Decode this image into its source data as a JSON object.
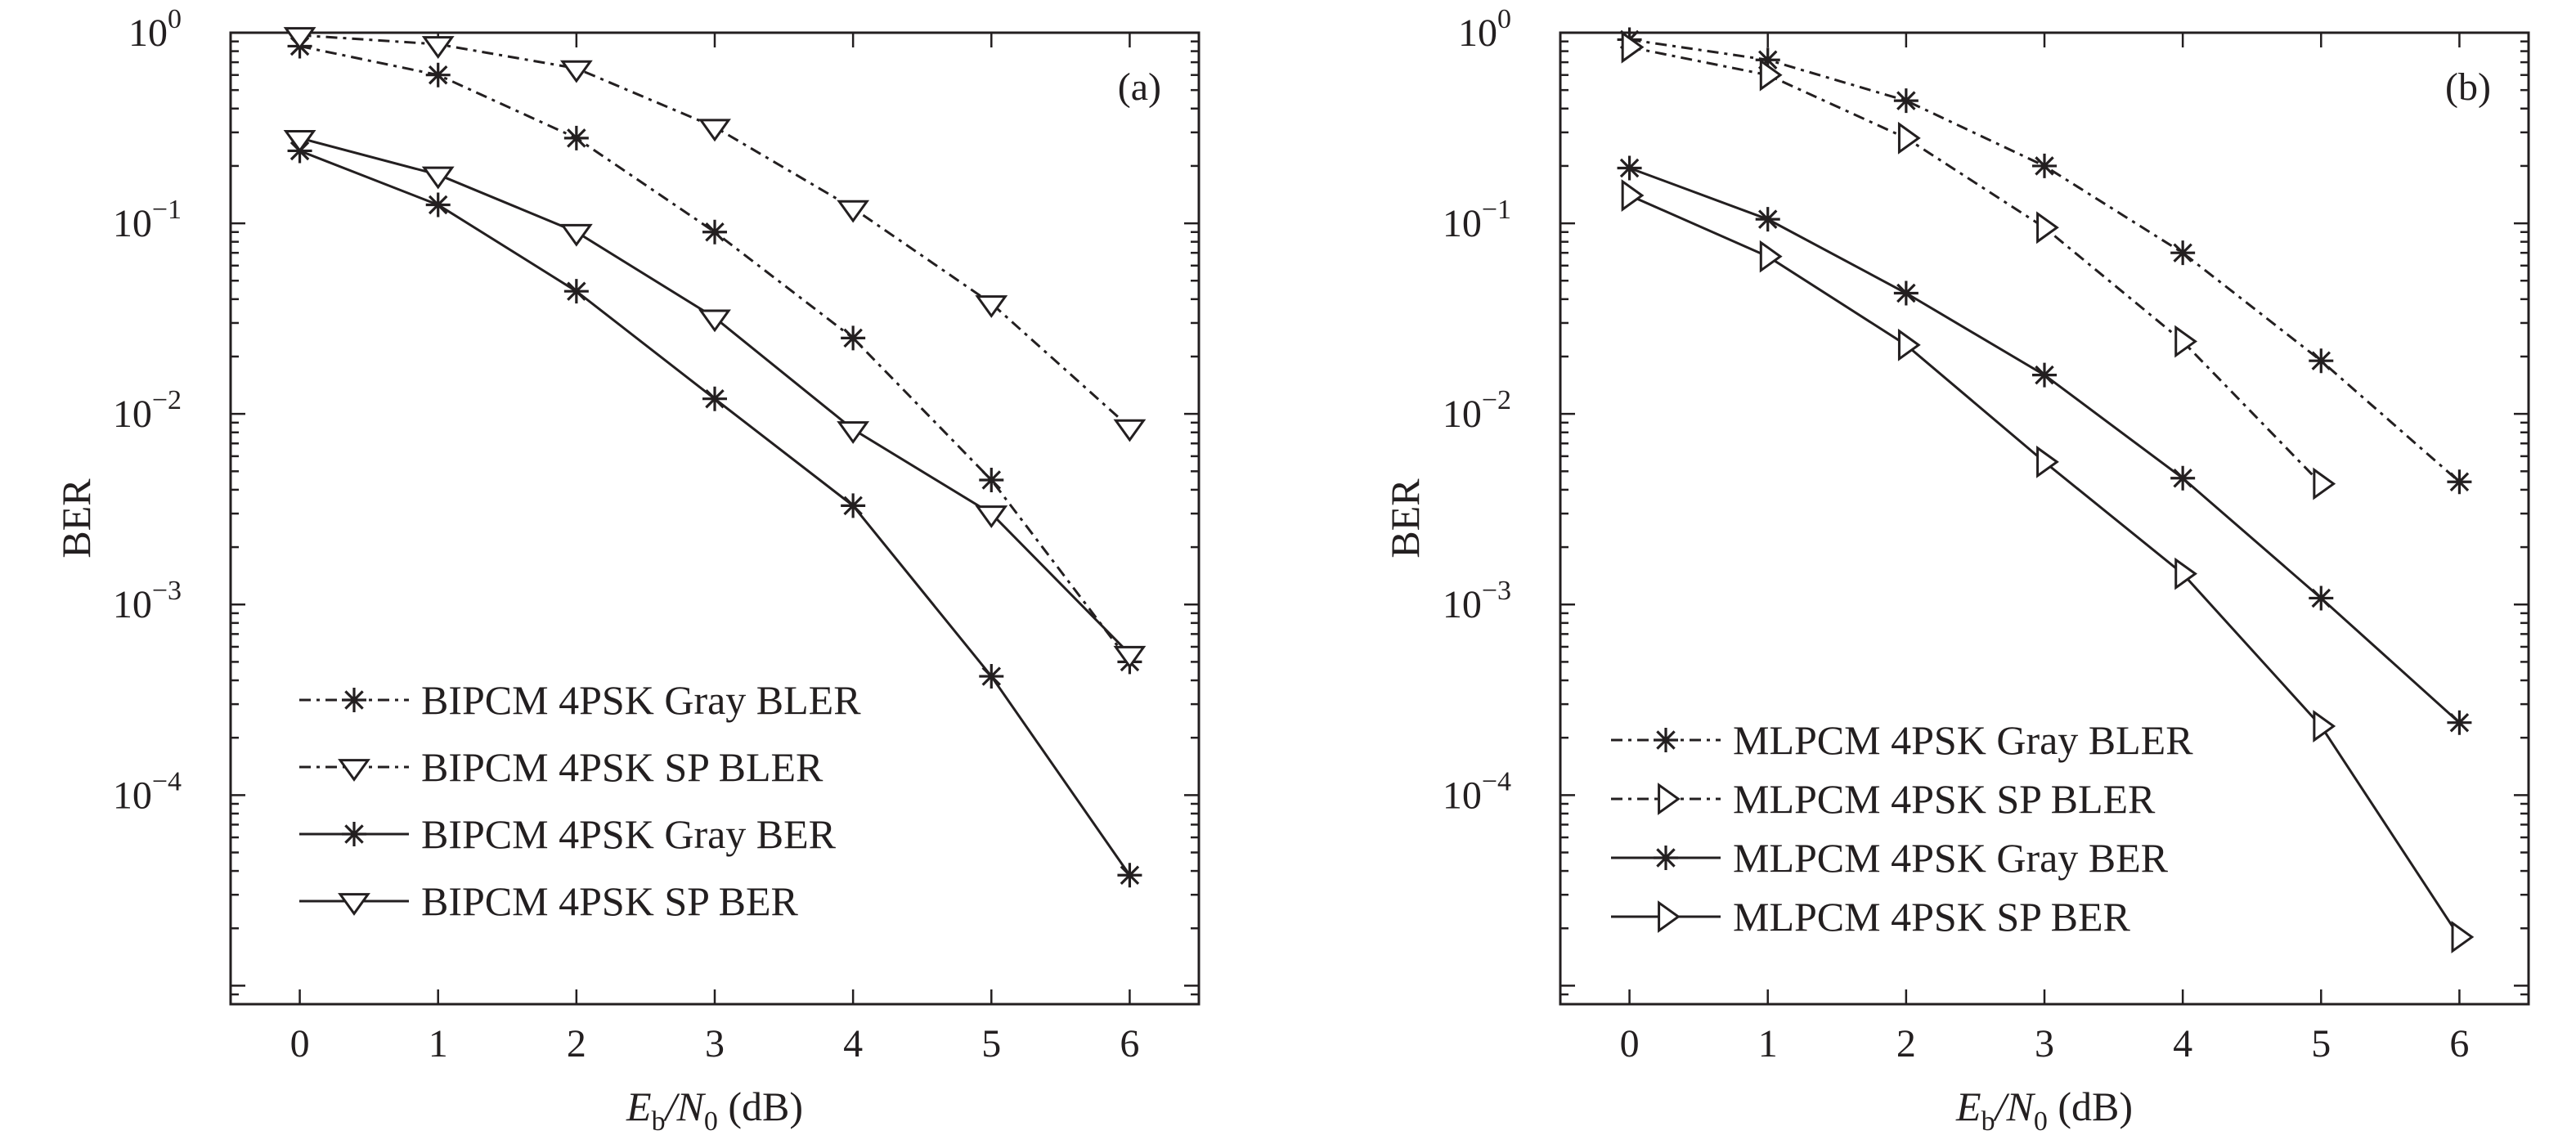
{
  "chart_data": [
    {
      "type": "line",
      "panel_label": "(a)",
      "y_scale": "log",
      "ylim": [
        8e-06,
        1
      ],
      "xlim": [
        -0.5,
        6.5
      ],
      "grid": false,
      "legend_position": "bottom-left",
      "ylabel": "BER",
      "xlabel": {
        "main": "E",
        "sub1": "b",
        "slash": "/N",
        "sub2": "0",
        "unit": " (dB)"
      },
      "x_ticks": [
        "0",
        "1",
        "2",
        "3",
        "4",
        "5",
        "6"
      ],
      "y_ticks": [
        {
          "value": 1,
          "base": "10",
          "exp": "0"
        },
        {
          "value": 0.1,
          "base": "10",
          "exp": "−1"
        },
        {
          "value": 0.01,
          "base": "10",
          "exp": "−2"
        },
        {
          "value": 0.001,
          "base": "10",
          "exp": "−3"
        },
        {
          "value": 0.0001,
          "base": "10",
          "exp": "−4"
        }
      ],
      "series": [
        {
          "name": "BIPCM 4PSK Gray BLER",
          "marker": "star",
          "line": "dashed",
          "x": [
            0,
            1,
            2,
            3,
            4,
            5,
            6
          ],
          "y": [
            0.85,
            0.6,
            0.28,
            0.09,
            0.025,
            0.0045,
            0.0005
          ]
        },
        {
          "name": "BIPCM 4PSK SP BLER",
          "marker": "triangle-down",
          "line": "dashed",
          "x": [
            0,
            1,
            2,
            3,
            4,
            5,
            6
          ],
          "y": [
            0.97,
            0.87,
            0.65,
            0.32,
            0.12,
            0.038,
            0.0085
          ]
        },
        {
          "name": "BIPCM 4PSK Gray BER",
          "marker": "star",
          "line": "solid",
          "x": [
            0,
            1,
            2,
            3,
            4,
            5,
            6
          ],
          "y": [
            0.24,
            0.125,
            0.044,
            0.012,
            0.0033,
            0.00042,
            3.8e-05
          ]
        },
        {
          "name": "BIPCM 4PSK SP BER",
          "marker": "triangle-down",
          "line": "solid",
          "x": [
            0,
            1,
            2,
            3,
            4,
            5,
            6
          ],
          "y": [
            0.28,
            0.18,
            0.09,
            0.032,
            0.0083,
            0.003,
            0.00055
          ]
        }
      ]
    },
    {
      "type": "line",
      "panel_label": "(b)",
      "y_scale": "log",
      "ylim": [
        8e-06,
        1
      ],
      "xlim": [
        -0.5,
        6.5
      ],
      "grid": false,
      "legend_position": "bottom-left",
      "ylabel": "BER",
      "xlabel": {
        "main": "E",
        "sub1": "b",
        "slash": "/N",
        "sub2": "0",
        "unit": " (dB)"
      },
      "x_ticks": [
        "0",
        "1",
        "2",
        "3",
        "4",
        "5",
        "6"
      ],
      "y_ticks": [
        {
          "value": 1,
          "base": "10",
          "exp": "0"
        },
        {
          "value": 0.1,
          "base": "10",
          "exp": "−1"
        },
        {
          "value": 0.01,
          "base": "10",
          "exp": "−2"
        },
        {
          "value": 0.001,
          "base": "10",
          "exp": "−3"
        },
        {
          "value": 0.0001,
          "base": "10",
          "exp": "−4"
        }
      ],
      "series": [
        {
          "name": "MLPCM 4PSK Gray BLER",
          "marker": "star",
          "line": "dashed",
          "x": [
            0,
            1,
            2,
            3,
            4,
            5,
            6
          ],
          "y": [
            0.92,
            0.72,
            0.44,
            0.2,
            0.07,
            0.019,
            0.0044
          ]
        },
        {
          "name": "MLPCM 4PSK SP BLER",
          "marker": "triangle-right",
          "line": "dashed",
          "x": [
            0,
            1,
            2,
            3,
            4,
            5
          ],
          "y": [
            0.84,
            0.6,
            0.28,
            0.095,
            0.024,
            0.0043
          ]
        },
        {
          "name": "MLPCM 4PSK Gray BER",
          "marker": "star",
          "line": "solid",
          "x": [
            0,
            1,
            2,
            3,
            4,
            5,
            6
          ],
          "y": [
            0.195,
            0.105,
            0.043,
            0.016,
            0.0046,
            0.00108,
            0.00024
          ]
        },
        {
          "name": "MLPCM 4PSK SP BER",
          "marker": "triangle-right",
          "line": "solid",
          "x": [
            0,
            1,
            2,
            3,
            4,
            5,
            6
          ],
          "y": [
            0.14,
            0.067,
            0.023,
            0.0056,
            0.00145,
            0.00023,
            1.8e-05
          ]
        }
      ]
    }
  ],
  "colors": {
    "ink": "#231f20",
    "background": "#ffffff"
  }
}
